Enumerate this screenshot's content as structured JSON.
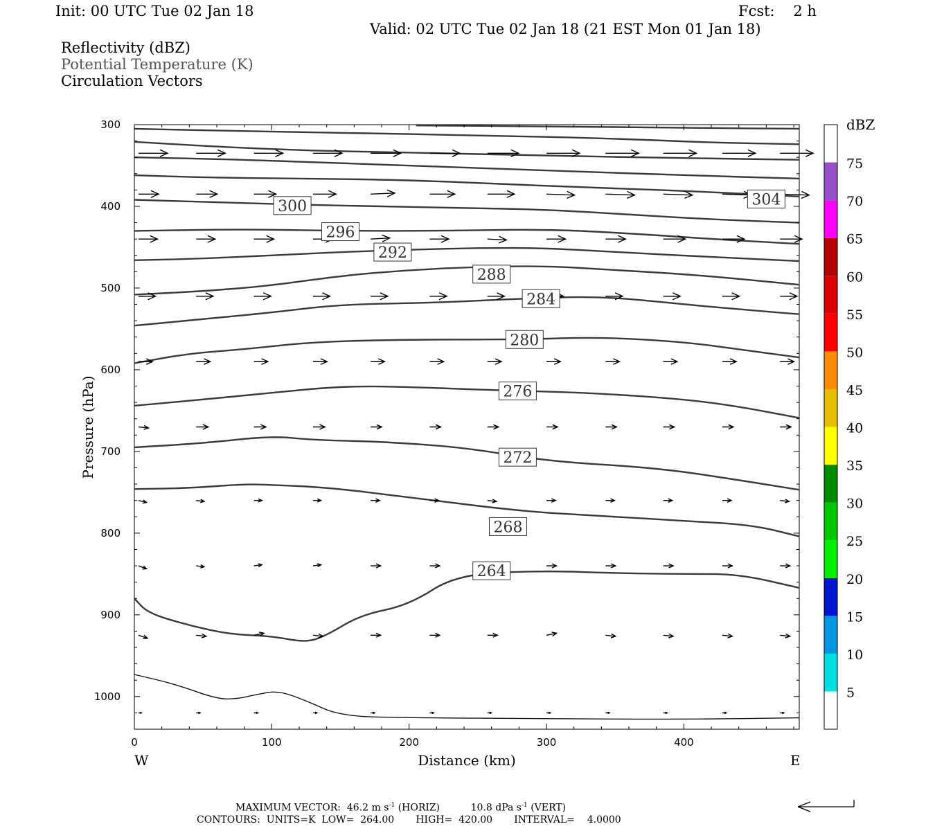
{
  "header": {
    "init": "Init: 00 UTC Tue 02 Jan 18",
    "fcst": "Fcst:    2 h",
    "valid": "Valid: 02 UTC Tue 02 Jan 18 (21 EST Mon 01 Jan 18)"
  },
  "legend": {
    "line1": "Reflectivity (dBZ)",
    "line2": "Potential Temperature (K)",
    "line3": "Circulation Vectors"
  },
  "footer": {
    "max_vector_label": "MAXIMUM VECTOR:",
    "max_vector_horiz": "46.2 m s",
    "horiz_exp": "-1",
    "horiz_tag": "(HORIZ)",
    "max_vector_vert": "10.8 dPa s",
    "vert_exp": "-1",
    "vert_tag": "(VERT)",
    "contours": "CONTOURS:  UNITS=K  LOW=  264.00       HIGH=  420.00       INTERVAL=    4.0000"
  },
  "colors": {
    "contour": "#3a3a3a",
    "vector": "#000000"
  },
  "chart_data": {
    "type": "line",
    "title": "",
    "xlabel": "Distance (km)",
    "ylabel": "Pressure (hPa)",
    "x_end_labels": {
      "left": "W",
      "right": "E"
    },
    "xlim": [
      0,
      484
    ],
    "ylim": [
      1040,
      300
    ],
    "y_reversed": true,
    "x_ticks": [
      0,
      100,
      200,
      300,
      400
    ],
    "y_ticks": [
      300,
      400,
      500,
      600,
      700,
      800,
      900,
      1000
    ],
    "grid": false,
    "contour_label_units": "K",
    "series": [
      {
        "label": "264",
        "label_at": [
          260,
          846
        ],
        "points": [
          [
            0,
            880
          ],
          [
            10,
            898
          ],
          [
            40,
            913
          ],
          [
            70,
            924
          ],
          [
            100,
            926
          ],
          [
            125,
            934
          ],
          [
            140,
            925
          ],
          [
            165,
            900
          ],
          [
            200,
            888
          ],
          [
            235,
            850
          ],
          [
            300,
            846
          ],
          [
            350,
            849
          ],
          [
            400,
            850
          ],
          [
            440,
            850
          ],
          [
            484,
            867
          ]
        ]
      },
      {
        "label": "268",
        "label_at": [
          272,
          792
        ],
        "points": [
          [
            0,
            746
          ],
          [
            40,
            745
          ],
          [
            80,
            740
          ],
          [
            100,
            741
          ],
          [
            140,
            744
          ],
          [
            200,
            756
          ],
          [
            280,
            773
          ],
          [
            340,
            779
          ],
          [
            400,
            785
          ],
          [
            450,
            790
          ],
          [
            484,
            804
          ]
        ]
      },
      {
        "label": "272",
        "label_at": [
          279,
          707
        ],
        "points": [
          [
            0,
            695
          ],
          [
            50,
            690
          ],
          [
            100,
            681
          ],
          [
            130,
            686
          ],
          [
            180,
            688
          ],
          [
            240,
            695
          ],
          [
            300,
            712
          ],
          [
            380,
            720
          ],
          [
            440,
            735
          ],
          [
            484,
            747
          ]
        ]
      },
      {
        "label": "276",
        "label_at": [
          279,
          626
        ],
        "points": [
          [
            0,
            644
          ],
          [
            40,
            638
          ],
          [
            90,
            630
          ],
          [
            150,
            620
          ],
          [
            200,
            621
          ],
          [
            260,
            625
          ],
          [
            330,
            628
          ],
          [
            400,
            636
          ],
          [
            440,
            645
          ],
          [
            484,
            659
          ]
        ]
      },
      {
        "label": "280",
        "label_at": [
          284,
          563
        ],
        "points": [
          [
            0,
            592
          ],
          [
            40,
            580
          ],
          [
            80,
            575
          ],
          [
            130,
            566
          ],
          [
            200,
            563
          ],
          [
            280,
            563
          ],
          [
            340,
            560
          ],
          [
            400,
            566
          ],
          [
            440,
            575
          ],
          [
            484,
            585
          ]
        ]
      },
      {
        "label": "284",
        "label_at": [
          296,
          513
        ],
        "points": [
          [
            0,
            546
          ],
          [
            50,
            538
          ],
          [
            100,
            530
          ],
          [
            150,
            520
          ],
          [
            220,
            518
          ],
          [
            280,
            513
          ],
          [
            340,
            510
          ],
          [
            400,
            520
          ],
          [
            440,
            526
          ],
          [
            484,
            532
          ]
        ]
      },
      {
        "label": "288",
        "label_at": [
          260,
          483
        ],
        "points": [
          [
            0,
            508
          ],
          [
            50,
            504
          ],
          [
            100,
            497
          ],
          [
            150,
            485
          ],
          [
            200,
            478
          ],
          [
            250,
            474
          ],
          [
            300,
            473
          ],
          [
            350,
            478
          ],
          [
            410,
            484
          ],
          [
            484,
            496
          ]
        ]
      },
      {
        "label": "292",
        "label_at": [
          188,
          456
        ],
        "points": [
          [
            0,
            466
          ],
          [
            50,
            464
          ],
          [
            100,
            460
          ],
          [
            150,
            456
          ],
          [
            200,
            453
          ],
          [
            250,
            451
          ],
          [
            300,
            451
          ],
          [
            350,
            456
          ],
          [
            420,
            462
          ],
          [
            484,
            467
          ]
        ]
      },
      {
        "label": "296",
        "label_at": [
          150,
          431
        ],
        "points": [
          [
            0,
            430
          ],
          [
            80,
            428
          ],
          [
            150,
            430
          ],
          [
            220,
            430
          ],
          [
            300,
            428
          ],
          [
            360,
            433
          ],
          [
            420,
            440
          ],
          [
            484,
            446
          ]
        ]
      },
      {
        "label": "300",
        "label_at": [
          115,
          399
        ],
        "points": [
          [
            0,
            392
          ],
          [
            60,
            395
          ],
          [
            120,
            398
          ],
          [
            180,
            400
          ],
          [
            240,
            402
          ],
          [
            300,
            404
          ],
          [
            360,
            410
          ],
          [
            420,
            416
          ],
          [
            484,
            420
          ]
        ]
      },
      {
        "label": "",
        "label_at": null,
        "points": [
          [
            0,
            362
          ],
          [
            60,
            365
          ],
          [
            130,
            366
          ],
          [
            200,
            368
          ],
          [
            260,
            372
          ],
          [
            330,
            377
          ],
          [
            400,
            381
          ],
          [
            460,
            386
          ],
          [
            484,
            388
          ]
        ]
      },
      {
        "label": "304",
        "label_at": [
          460,
          391
        ],
        "points": [
          [
            0,
            340
          ],
          [
            60,
            342
          ],
          [
            150,
            347
          ],
          [
            230,
            352
          ],
          [
            300,
            356
          ],
          [
            400,
            362
          ],
          [
            484,
            366
          ]
        ]
      },
      {
        "label": "",
        "label_at": null,
        "points": [
          [
            0,
            321
          ],
          [
            60,
            327
          ],
          [
            130,
            332
          ],
          [
            200,
            334
          ],
          [
            300,
            338
          ],
          [
            400,
            341
          ],
          [
            484,
            343
          ]
        ]
      },
      {
        "label": "",
        "label_at": null,
        "points": [
          [
            0,
            305
          ],
          [
            80,
            308
          ],
          [
            150,
            310
          ],
          [
            250,
            313
          ],
          [
            350,
            317
          ],
          [
            420,
            322
          ],
          [
            484,
            324
          ]
        ]
      },
      {
        "label": "",
        "label_at": null,
        "points": [
          [
            205,
            301
          ],
          [
            300,
            302
          ],
          [
            400,
            304
          ],
          [
            484,
            305
          ]
        ]
      },
      {
        "label": "",
        "label_at": null,
        "points": [
          [
            0,
            973
          ],
          [
            30,
            985
          ],
          [
            60,
            1003
          ],
          [
            75,
            1003
          ],
          [
            90,
            997
          ],
          [
            105,
            993
          ],
          [
            125,
            1005
          ],
          [
            150,
            1024
          ],
          [
            200,
            1026
          ],
          [
            300,
            1027
          ],
          [
            400,
            1028
          ],
          [
            484,
            1026
          ]
        ]
      }
    ],
    "vectors": {
      "x": [
        3,
        45,
        87,
        130,
        172,
        215,
        257,
        300,
        343,
        385,
        428,
        470
      ],
      "rows": [
        {
          "p": 335,
          "u": [
            29,
            29,
            29,
            29,
            30,
            30,
            31,
            33,
            33,
            33,
            33,
            33
          ],
          "w": [
            0,
            0,
            0,
            0,
            0,
            0,
            0,
            0,
            0,
            0,
            0,
            0
          ]
        },
        {
          "p": 385,
          "u": [
            20,
            21,
            22,
            23,
            24,
            25,
            27,
            28,
            29,
            29,
            29,
            29
          ],
          "w": [
            0,
            0,
            0,
            0,
            1,
            0,
            0,
            -1,
            -1,
            -1,
            -1,
            -1
          ]
        },
        {
          "p": 440,
          "u": [
            19,
            19,
            20,
            20,
            19,
            19,
            19,
            19,
            20,
            22,
            22,
            22
          ],
          "w": [
            0,
            0,
            0,
            0,
            1,
            0,
            -1,
            0,
            0,
            0,
            0,
            0
          ]
        },
        {
          "p": 510,
          "u": [
            17,
            17,
            17,
            17,
            17,
            17,
            17,
            17,
            17,
            17,
            17,
            17
          ],
          "w": [
            0,
            0,
            0,
            0,
            0,
            0,
            0,
            0,
            0,
            0,
            0,
            0
          ]
        },
        {
          "p": 590,
          "u": [
            14,
            14,
            14,
            14,
            14,
            14,
            14,
            14,
            14,
            14,
            14,
            14
          ],
          "w": [
            0,
            0,
            0,
            0,
            0,
            0,
            0,
            0,
            0,
            0,
            0,
            0
          ]
        },
        {
          "p": 670,
          "u": [
            10,
            12,
            12,
            12,
            11,
            11,
            11,
            11,
            11,
            11,
            11,
            11
          ],
          "w": [
            -1,
            0,
            0,
            0,
            0,
            0,
            0,
            0,
            0,
            0,
            0,
            0
          ]
        },
        {
          "p": 760,
          "u": [
            8,
            8,
            8,
            8,
            9,
            9,
            9,
            9,
            9,
            9,
            9,
            9
          ],
          "w": [
            -2,
            -1,
            0,
            0,
            0,
            0,
            -1,
            0,
            0,
            0,
            0,
            -1
          ]
        },
        {
          "p": 840,
          "u": [
            8,
            8,
            8,
            8,
            10,
            10,
            10,
            10,
            10,
            10,
            10,
            10
          ],
          "w": [
            -3,
            -1,
            1,
            1,
            0,
            0,
            0,
            0,
            0,
            0,
            0,
            0
          ]
        },
        {
          "p": 925,
          "u": [
            9,
            10,
            10,
            10,
            10,
            10,
            10,
            10,
            10,
            10,
            10,
            10
          ],
          "w": [
            -3,
            -1,
            2,
            -1,
            0,
            0,
            0,
            2,
            -1,
            -1,
            -1,
            -1
          ]
        },
        {
          "p": 1020,
          "u": [
            3,
            4,
            4,
            4,
            4,
            4,
            4,
            4,
            4,
            4,
            4,
            4
          ],
          "w": [
            0,
            0,
            0,
            0,
            0,
            0,
            0,
            0,
            0,
            0,
            0,
            0
          ]
        }
      ]
    },
    "colorbar": {
      "label": "dBZ",
      "ticks": [
        5,
        10,
        15,
        20,
        25,
        30,
        35,
        40,
        45,
        50,
        55,
        60,
        65,
        70,
        75
      ],
      "bins": [
        {
          "from": 5,
          "color": "#00e0e0"
        },
        {
          "from": 10,
          "color": "#0096e0"
        },
        {
          "from": 15,
          "color": "#0014d2"
        },
        {
          "from": 20,
          "color": "#00f000"
        },
        {
          "from": 25,
          "color": "#00c800"
        },
        {
          "from": 30,
          "color": "#008c00"
        },
        {
          "from": 35,
          "color": "#ffff00"
        },
        {
          "from": 40,
          "color": "#e6be00"
        },
        {
          "from": 45,
          "color": "#ff8c00"
        },
        {
          "from": 50,
          "color": "#ff0000"
        },
        {
          "from": 55,
          "color": "#dc0000"
        },
        {
          "from": 60,
          "color": "#b40000"
        },
        {
          "from": 65,
          "color": "#ff00ff"
        },
        {
          "from": 70,
          "color": "#9650c8"
        }
      ]
    }
  }
}
